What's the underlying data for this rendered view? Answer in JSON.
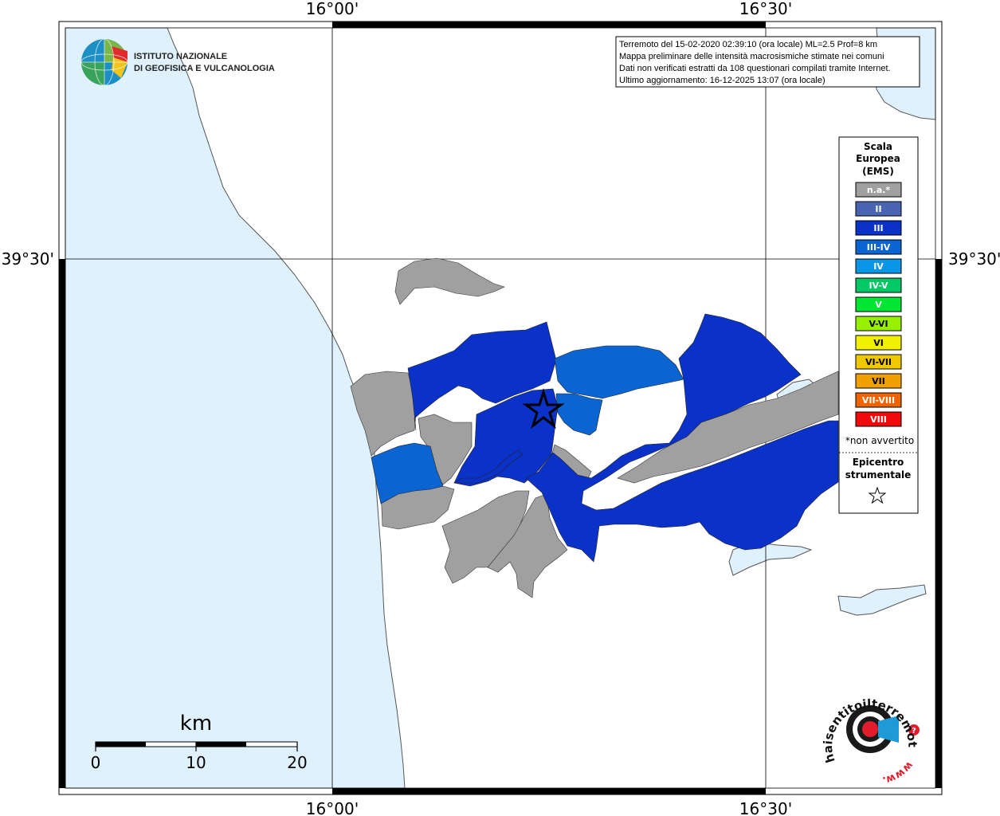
{
  "map": {
    "lon_labels": [
      "16°00'",
      "16°30'"
    ],
    "lat_labels": [
      "39°30'"
    ]
  },
  "logo": {
    "line1": "ISTITUTO NAZIONALE",
    "line2": "DI GEOFISICA E VULCANOLOGIA"
  },
  "info_box": {
    "lines": [
      "Terremoto del 15-02-2020 02:39:10 (ora locale) ML=2.5 Prof=8 km",
      "Mappa preliminare delle intensità macrosismiche stimate nei comuni",
      "Dati non verificati estratti da 108 questionari compilati tramite Internet.",
      "Ultimo aggiornamento: 16-12-2025 13:07 (ora locale)"
    ]
  },
  "legend": {
    "title_lines": [
      "Scala",
      "Europea",
      "(EMS)"
    ],
    "items": [
      {
        "label": "n.a.*",
        "color": "#a0a0a0"
      },
      {
        "label": "II",
        "color": "#4a64b4"
      },
      {
        "label": "III",
        "color": "#0a32c8"
      },
      {
        "label": "III-IV",
        "color": "#0a64d2"
      },
      {
        "label": "IV",
        "color": "#0a96e6"
      },
      {
        "label": "IV-V",
        "color": "#00c864"
      },
      {
        "label": "V",
        "color": "#00e632"
      },
      {
        "label": "V-VI",
        "color": "#96f000"
      },
      {
        "label": "VI",
        "color": "#f0f000"
      },
      {
        "label": "VI-VII",
        "color": "#f0c800"
      },
      {
        "label": "VII",
        "color": "#f0a000"
      },
      {
        "label": "VII-VIII",
        "color": "#f06400"
      },
      {
        "label": "VIII",
        "color": "#f00a0a"
      }
    ],
    "footnote": "*non avvertito",
    "epicenter_lines": [
      "Epicentro",
      "strumentale"
    ]
  },
  "scale_bar": {
    "unit": "km",
    "ticks": [
      "0",
      "10",
      "20"
    ]
  },
  "watermark": {
    "text": "haisentitoilterremoto.it",
    "www": "www."
  },
  "colors": {
    "sea": "#dff1fc",
    "land": "#ffffff",
    "na": "#a0a0a0",
    "ii": "#4a64b4",
    "iii": "#0a32c8",
    "iii_iv": "#0a64d2"
  }
}
